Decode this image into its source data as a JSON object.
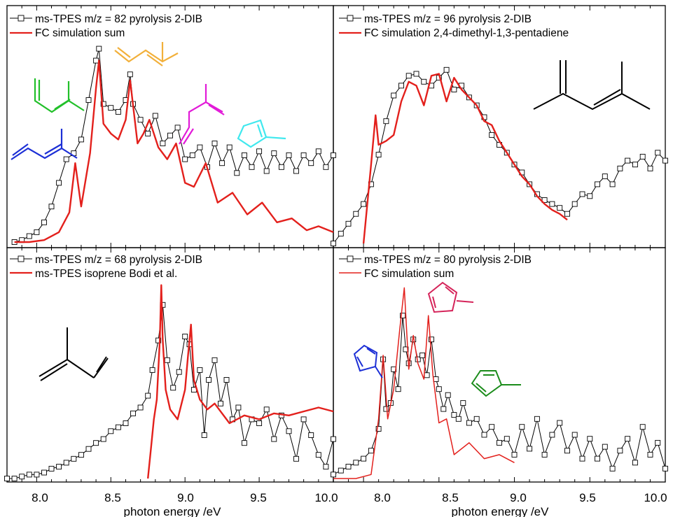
{
  "figure": {
    "xlabel": "photon energy /eV",
    "x_ticks": [
      "8.0",
      "8.5",
      "9.0",
      "9.5",
      "10.0"
    ]
  },
  "chart_data": [
    {
      "type": "line",
      "xlim": [
        7.8,
        10.0
      ],
      "ylim": [
        0,
        1
      ],
      "legend": [
        "ms-TPES m/z = 82 pyrolysis 2-DIB",
        "FC simulation sum"
      ],
      "legend_placement": "top-left",
      "annotations": [
        "structure: linear pentadiene",
        "structure: bent pentadiene",
        "structure: isoprene-like diene (orange)",
        "structure: isoprene-like diene (magenta)",
        "structure: methylcyclobutene"
      ],
      "series": [
        {
          "name": "ms-TPES m/z = 82 pyrolysis 2-DIB",
          "color": "#000000",
          "marker": "open-square",
          "x": [
            7.85,
            7.9,
            7.95,
            8.0,
            8.05,
            8.1,
            8.15,
            8.2,
            8.25,
            8.3,
            8.35,
            8.4,
            8.42,
            8.45,
            8.5,
            8.55,
            8.6,
            8.63,
            8.65,
            8.7,
            8.75,
            8.8,
            8.85,
            8.9,
            8.95,
            9.0,
            9.05,
            9.1,
            9.15,
            9.2,
            9.25,
            9.3,
            9.35,
            9.4,
            9.45,
            9.5,
            9.55,
            9.6,
            9.65,
            9.7,
            9.75,
            9.8,
            9.85,
            9.9,
            9.95,
            10.0
          ],
          "y": [
            0.0,
            0.01,
            0.03,
            0.05,
            0.1,
            0.18,
            0.3,
            0.42,
            0.45,
            0.52,
            0.72,
            0.92,
            0.98,
            0.7,
            0.68,
            0.66,
            0.72,
            0.85,
            0.7,
            0.62,
            0.55,
            0.64,
            0.5,
            0.54,
            0.58,
            0.42,
            0.44,
            0.48,
            0.38,
            0.5,
            0.4,
            0.48,
            0.35,
            0.44,
            0.38,
            0.46,
            0.36,
            0.45,
            0.38,
            0.44,
            0.36,
            0.44,
            0.4,
            0.46,
            0.38,
            0.44
          ]
        },
        {
          "name": "FC simulation sum",
          "color": "#e3201c",
          "x": [
            7.85,
            7.95,
            8.05,
            8.15,
            8.22,
            8.26,
            8.3,
            8.36,
            8.4,
            8.42,
            8.45,
            8.5,
            8.55,
            8.6,
            8.63,
            8.68,
            8.72,
            8.76,
            8.82,
            8.88,
            8.94,
            9.0,
            9.06,
            9.14,
            9.22,
            9.32,
            9.42,
            9.52,
            9.62,
            9.72,
            9.82,
            9.9,
            10.0
          ],
          "y": [
            0.0,
            0.0,
            0.01,
            0.05,
            0.15,
            0.4,
            0.18,
            0.45,
            0.78,
            0.92,
            0.6,
            0.55,
            0.52,
            0.62,
            0.82,
            0.5,
            0.55,
            0.62,
            0.48,
            0.42,
            0.5,
            0.3,
            0.28,
            0.4,
            0.2,
            0.25,
            0.14,
            0.2,
            0.1,
            0.12,
            0.06,
            0.08,
            0.05
          ]
        }
      ]
    },
    {
      "type": "line",
      "xlim": [
        7.8,
        10.0
      ],
      "ylim": [
        0,
        1
      ],
      "legend": [
        "ms-TPES m/z = 96 pyrolysis 2-DIB",
        "FC simulation 2,4-dimethyl-1,3-pentadiene"
      ],
      "legend_placement": "top-left",
      "annotations": [
        "structure: 2,4-dimethyl-1,3-pentadiene"
      ],
      "series": [
        {
          "name": "ms-TPES m/z = 96 pyrolysis 2-DIB",
          "color": "#000000",
          "marker": "open-square",
          "x": [
            7.8,
            7.85,
            7.9,
            7.95,
            8.0,
            8.05,
            8.1,
            8.15,
            8.2,
            8.25,
            8.3,
            8.35,
            8.4,
            8.45,
            8.5,
            8.55,
            8.6,
            8.65,
            8.7,
            8.75,
            8.8,
            8.85,
            8.9,
            8.95,
            9.0,
            9.05,
            9.1,
            9.15,
            9.2,
            9.25,
            9.3,
            9.35,
            9.4,
            9.45,
            9.5,
            9.55,
            9.6,
            9.65,
            9.7,
            9.75,
            9.8,
            9.85,
            9.9,
            9.95,
            10.0
          ],
          "y": [
            0.0,
            0.05,
            0.1,
            0.15,
            0.2,
            0.3,
            0.45,
            0.62,
            0.75,
            0.8,
            0.85,
            0.86,
            0.82,
            0.8,
            0.84,
            0.88,
            0.78,
            0.8,
            0.74,
            0.7,
            0.64,
            0.55,
            0.5,
            0.46,
            0.4,
            0.36,
            0.3,
            0.25,
            0.22,
            0.2,
            0.18,
            0.15,
            0.2,
            0.25,
            0.24,
            0.3,
            0.34,
            0.3,
            0.38,
            0.42,
            0.4,
            0.44,
            0.38,
            0.46,
            0.42
          ]
        },
        {
          "name": "FC simulation 2,4-dimethyl-1,3-pentadiene",
          "color": "#e3201c",
          "x": [
            8.0,
            8.05,
            8.08,
            8.1,
            8.15,
            8.2,
            8.25,
            8.3,
            8.35,
            8.4,
            8.45,
            8.5,
            8.55,
            8.6,
            8.65,
            8.7,
            8.75,
            8.8,
            8.85,
            8.9,
            8.95,
            9.0,
            9.05,
            9.1,
            9.15,
            9.2,
            9.25,
            9.3,
            9.35
          ],
          "y": [
            0.0,
            0.4,
            0.65,
            0.5,
            0.52,
            0.55,
            0.72,
            0.82,
            0.8,
            0.7,
            0.85,
            0.86,
            0.72,
            0.84,
            0.78,
            0.74,
            0.7,
            0.62,
            0.6,
            0.52,
            0.46,
            0.4,
            0.34,
            0.3,
            0.24,
            0.2,
            0.17,
            0.15,
            0.12
          ]
        }
      ]
    },
    {
      "type": "line",
      "xlim": [
        7.8,
        10.0
      ],
      "ylim": [
        0,
        1
      ],
      "legend": [
        "ms-TPES m/z = 68 pyrolysis 2-DIB",
        "ms-TPES isoprene Bodi et al."
      ],
      "legend_placement": "top-left",
      "annotations": [
        "structure: isoprene"
      ],
      "series": [
        {
          "name": "ms-TPES m/z = 68 pyrolysis 2-DIB",
          "color": "#000000",
          "marker": "open-square",
          "x": [
            7.8,
            7.85,
            7.9,
            7.95,
            8.0,
            8.05,
            8.1,
            8.15,
            8.2,
            8.25,
            8.3,
            8.35,
            8.4,
            8.45,
            8.5,
            8.55,
            8.6,
            8.65,
            8.7,
            8.75,
            8.78,
            8.82,
            8.85,
            8.88,
            8.92,
            8.96,
            9.0,
            9.03,
            9.06,
            9.1,
            9.13,
            9.16,
            9.2,
            9.24,
            9.28,
            9.32,
            9.36,
            9.4,
            9.45,
            9.5,
            9.55,
            9.6,
            9.65,
            9.7,
            9.75,
            9.8,
            9.85,
            9.9,
            9.95,
            10.0
          ],
          "y": [
            0.0,
            0.0,
            0.01,
            0.02,
            0.02,
            0.03,
            0.05,
            0.06,
            0.08,
            0.1,
            0.12,
            0.15,
            0.18,
            0.2,
            0.24,
            0.26,
            0.28,
            0.33,
            0.36,
            0.42,
            0.55,
            0.7,
            0.88,
            0.6,
            0.46,
            0.54,
            0.72,
            0.68,
            0.45,
            0.55,
            0.22,
            0.5,
            0.6,
            0.38,
            0.5,
            0.3,
            0.36,
            0.18,
            0.3,
            0.28,
            0.35,
            0.2,
            0.32,
            0.24,
            0.1,
            0.3,
            0.22,
            0.12,
            0.06,
            0.2
          ]
        },
        {
          "name": "ms-TPES isoprene Bodi et al.",
          "color": "#e3201c",
          "x": [
            8.75,
            8.77,
            8.79,
            8.81,
            8.83,
            8.84,
            8.85,
            8.87,
            8.9,
            8.95,
            9.0,
            9.02,
            9.04,
            9.06,
            9.1,
            9.15,
            9.2,
            9.3,
            9.4,
            9.5,
            9.6,
            9.7,
            9.8,
            9.9,
            10.0
          ],
          "y": [
            0.0,
            0.15,
            0.3,
            0.4,
            0.7,
            0.98,
            0.7,
            0.45,
            0.35,
            0.3,
            0.45,
            0.62,
            0.78,
            0.5,
            0.4,
            0.35,
            0.38,
            0.28,
            0.32,
            0.3,
            0.33,
            0.32,
            0.34,
            0.36,
            0.34
          ]
        }
      ]
    },
    {
      "type": "line",
      "xlim": [
        7.8,
        10.0
      ],
      "ylim": [
        0,
        1
      ],
      "legend": [
        "ms-TPES m/z = 80 pyrolysis 2-DIB",
        "FC simulation sum"
      ],
      "legend_placement": "top-left",
      "annotations": [
        "structure: 1-methylcyclopentadiene (blue)",
        "structure: 5-methylcyclopentadiene (crimson)",
        "structure: 2-methylcyclopentadiene (green)"
      ],
      "series": [
        {
          "name": "ms-TPES m/z = 80 pyrolysis 2-DIB",
          "color": "#000000",
          "marker": "open-square",
          "x": [
            7.8,
            7.85,
            7.9,
            7.95,
            8.0,
            8.05,
            8.1,
            8.13,
            8.15,
            8.18,
            8.2,
            8.23,
            8.26,
            8.28,
            8.3,
            8.33,
            8.36,
            8.39,
            8.42,
            8.45,
            8.48,
            8.5,
            8.53,
            8.56,
            8.6,
            8.63,
            8.66,
            8.7,
            8.75,
            8.8,
            8.85,
            8.9,
            8.95,
            9.0,
            9.05,
            9.1,
            9.15,
            9.2,
            9.25,
            9.3,
            9.35,
            9.4,
            9.45,
            9.5,
            9.55,
            9.6,
            9.65,
            9.7,
            9.75,
            9.8,
            9.85,
            9.9,
            9.95,
            10.0
          ],
          "y": [
            0.02,
            0.04,
            0.06,
            0.08,
            0.1,
            0.14,
            0.25,
            0.6,
            0.35,
            0.38,
            0.55,
            0.45,
            0.82,
            0.65,
            0.58,
            0.7,
            0.6,
            0.62,
            0.52,
            0.7,
            0.5,
            0.45,
            0.35,
            0.42,
            0.32,
            0.3,
            0.38,
            0.28,
            0.3,
            0.22,
            0.26,
            0.18,
            0.2,
            0.12,
            0.26,
            0.15,
            0.3,
            0.12,
            0.22,
            0.28,
            0.14,
            0.22,
            0.1,
            0.2,
            0.1,
            0.16,
            0.05,
            0.14,
            0.2,
            0.08,
            0.26,
            0.12,
            0.18,
            0.05
          ]
        },
        {
          "name": "FC simulation sum",
          "color": "#e3201c",
          "x": [
            7.8,
            7.95,
            8.05,
            8.1,
            8.13,
            8.16,
            8.2,
            8.24,
            8.27,
            8.3,
            8.33,
            8.36,
            8.4,
            8.43,
            8.46,
            8.5,
            8.55,
            8.6,
            8.7,
            8.8,
            8.9,
            9.0
          ],
          "y": [
            0.0,
            0.0,
            0.02,
            0.3,
            0.62,
            0.3,
            0.45,
            0.75,
            0.96,
            0.55,
            0.72,
            0.58,
            0.5,
            0.82,
            0.52,
            0.28,
            0.3,
            0.12,
            0.18,
            0.1,
            0.12,
            0.08
          ]
        }
      ]
    }
  ]
}
